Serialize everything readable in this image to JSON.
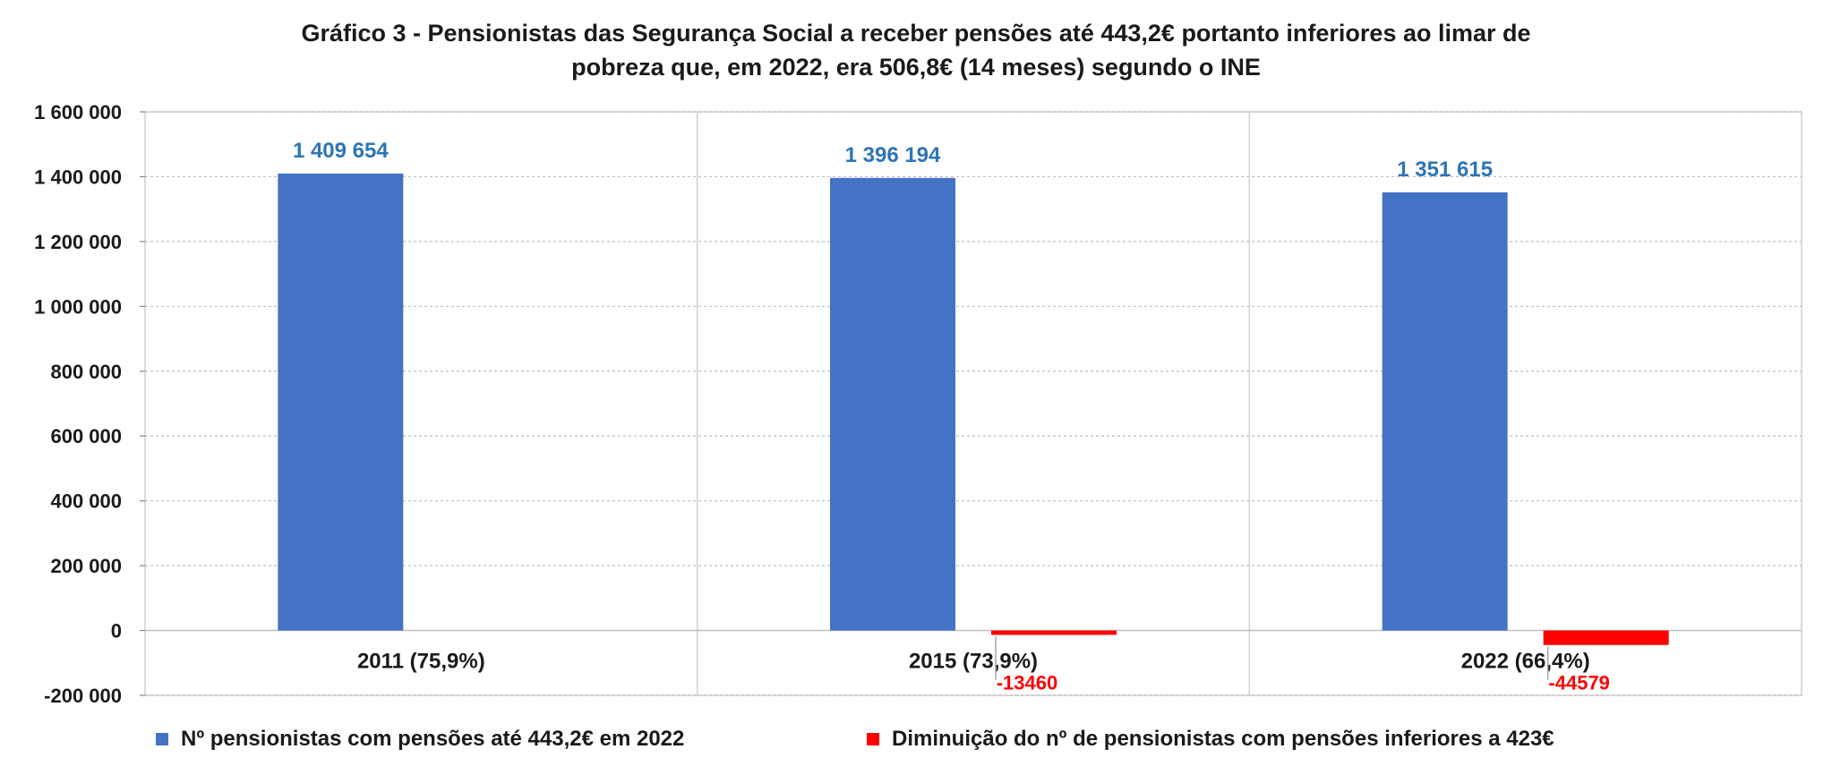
{
  "chart_data": {
    "type": "bar",
    "title_lines": [
      "Gráfico 3 - Pensionistas das Segurança Social a receber pensões até 443,2€ portanto inferiores ao limar  de",
      "pobreza que, em 2022, era 506,8€ (14 meses) segundo o INE"
    ],
    "categories": [
      "2011 (75,9%)",
      "2015 (73,9%)",
      "2022 (66,4%)"
    ],
    "series": [
      {
        "name": "Nº pensionistas  com pensões até 443,2€ em 2022",
        "color": "#4472C4",
        "values": [
          1409654,
          1396194,
          1351615
        ],
        "labels": [
          "1 409 654",
          "1 396 194",
          "1 351 615"
        ],
        "label_color": "#2E75B6"
      },
      {
        "name": "Diminuição  do nº de pensionistas  com pensões inferiores a 423€",
        "color": "#FF0000",
        "values": [
          null,
          -13460,
          -44579
        ],
        "labels": [
          "",
          "-13460",
          "-44579"
        ],
        "label_color": "#FF0000"
      }
    ],
    "ylim": [
      -200000,
      1600000
    ],
    "yticks": [
      1600000,
      1400000,
      1200000,
      1000000,
      800000,
      600000,
      400000,
      200000,
      0,
      -200000
    ],
    "ytick_labels": [
      "1 600 000",
      "1 400 000",
      "1 200 000",
      "1 000 000",
      "800 000",
      "600 000",
      "400 000",
      "200 000",
      "0",
      "-200 000"
    ],
    "grid": true,
    "legend_position": "bottom"
  }
}
